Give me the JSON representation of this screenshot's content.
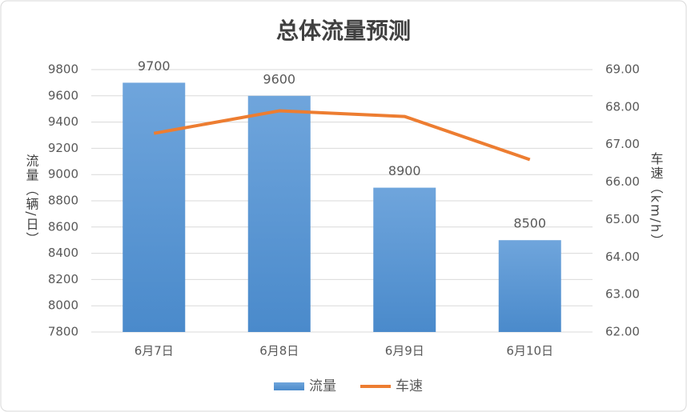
{
  "chart_data": {
    "type": "combo",
    "title": "总体流量预测",
    "y_label": "流量（辆/日）",
    "y2_label": "车速（km/h）",
    "categories": [
      "6月7日",
      "6月8日",
      "6月9日",
      "6月10日"
    ],
    "series": [
      {
        "name": "流量",
        "type": "bar",
        "color": "#5b9bd5",
        "values": [
          9700,
          9600,
          8900,
          8500
        ]
      },
      {
        "name": "车速",
        "type": "line",
        "color": "#ed7d31",
        "axis": "y2",
        "values": [
          67.3,
          67.9,
          67.75,
          66.6
        ]
      }
    ],
    "ylim": [
      7800,
      9800
    ],
    "yticks": [
      7800,
      8000,
      8200,
      8400,
      8600,
      8800,
      9000,
      9200,
      9400,
      9600,
      9800
    ],
    "y2lim": [
      62,
      69
    ],
    "y2ticks": [
      {
        "value": 62,
        "label": "62.00"
      },
      {
        "value": 63,
        "label": "63.00"
      },
      {
        "value": 64,
        "label": "64.00"
      },
      {
        "value": 65,
        "label": "65.00"
      },
      {
        "value": 66,
        "label": "66.00"
      },
      {
        "value": 67,
        "label": "67.00"
      },
      {
        "value": 68,
        "label": "68.00"
      },
      {
        "value": 69,
        "label": "69.00"
      }
    ],
    "grid": true,
    "legend": "bottom"
  }
}
